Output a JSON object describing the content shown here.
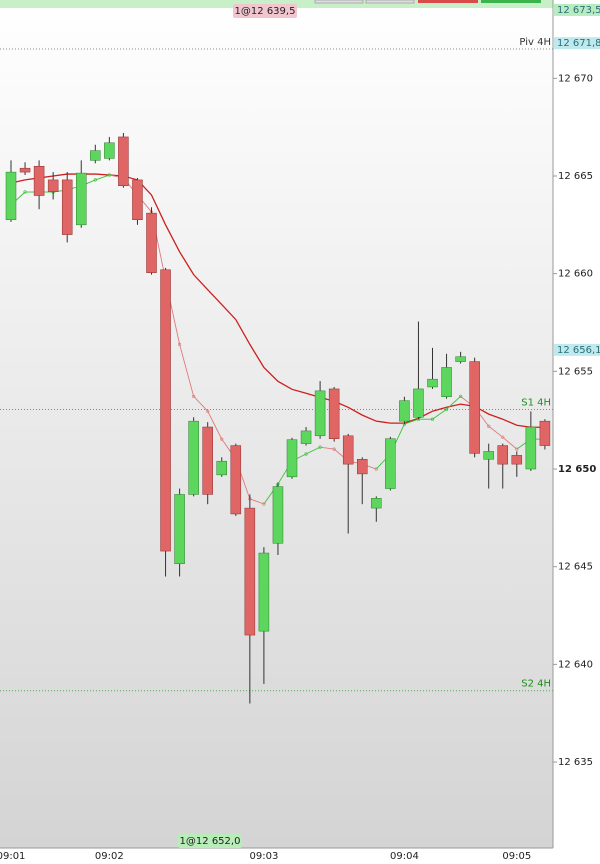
{
  "chart_data": {
    "type": "candlestick",
    "categories": [
      "09:01",
      null,
      null,
      null,
      null,
      null,
      null,
      "09:02",
      null,
      null,
      null,
      null,
      null,
      null,
      null,
      null,
      null,
      null,
      "09:03",
      null,
      null,
      null,
      null,
      null,
      null,
      null,
      null,
      null,
      "09:04",
      null,
      null,
      null,
      null,
      null,
      null,
      null,
      "09:05",
      null,
      null
    ],
    "open": [
      12662.76,
      12665.4,
      12665.5,
      12664.8,
      12664.8,
      12662.5,
      12665.8,
      12665.9,
      12667.0,
      12664.8,
      12663.1,
      12660.2,
      12645.15,
      12648.7,
      12652.15,
      12649.7,
      12651.2,
      12648.0,
      12641.7,
      12646.2,
      12649.6,
      12651.3,
      12651.7,
      12654.1,
      12651.7,
      12650.5,
      12648.0,
      12649.0,
      12652.45,
      12652.65,
      12654.2,
      12653.7,
      12655.5,
      12655.5,
      12650.5,
      12651.2,
      12650.7,
      12650.0,
      12652.45
    ],
    "high": [
      12665.8,
      12665.7,
      12665.8,
      12665.2,
      12665.2,
      12665.8,
      12666.6,
      12667.0,
      12667.2,
      12664.9,
      12663.4,
      12660.3,
      12649.0,
      12652.65,
      12652.4,
      12650.6,
      12651.3,
      12648.7,
      12646.0,
      12649.3,
      12651.6,
      12652.15,
      12654.5,
      12654.2,
      12651.8,
      12650.6,
      12648.6,
      12651.65,
      12653.7,
      12657.55,
      12656.2,
      12655.9,
      12656.0,
      12655.7,
      12651.3,
      12651.3,
      12650.9,
      12652.95,
      12652.55
    ],
    "low": [
      12662.65,
      12665.05,
      12663.3,
      12663.8,
      12661.6,
      12662.35,
      12665.65,
      12665.8,
      12664.4,
      12662.5,
      12659.95,
      12644.5,
      12644.5,
      12648.6,
      12648.2,
      12649.6,
      12647.6,
      12638.0,
      12639.0,
      12645.6,
      12649.5,
      12651.2,
      12651.55,
      12651.4,
      12646.7,
      12648.2,
      12647.3,
      12648.9,
      12652.3,
      12652.55,
      12654.1,
      12653.6,
      12655.4,
      12650.6,
      12649.0,
      12649.0,
      12649.6,
      12649.9,
      12651.0
    ],
    "close": [
      12665.2,
      12665.2,
      12664.0,
      12664.2,
      12662.0,
      12665.15,
      12666.3,
      12666.7,
      12664.5,
      12662.76,
      12660.05,
      12645.8,
      12648.7,
      12652.45,
      12648.7,
      12650.4,
      12647.7,
      12641.5,
      12645.7,
      12649.1,
      12651.5,
      12651.95,
      12654.0,
      12651.55,
      12650.25,
      12649.75,
      12648.5,
      12651.55,
      12653.5,
      12654.1,
      12654.6,
      12655.2,
      12655.75,
      12650.8,
      12650.9,
      12650.25,
      12650.25,
      12652.15,
      12651.2
    ],
    "up_color": "#5cd65c",
    "down_color": "#e06666",
    "series": [
      {
        "name": "MA slow",
        "kind": "line",
        "color": "#cc1f1f",
        "values": [
          12664.64,
          12664.8,
          12664.9,
          12665.0,
          12665.1,
          12665.1,
          12665.1,
          12665.05,
          12665.0,
          12664.8,
          12664.03,
          12662.5,
          12661.12,
          12659.95,
          12659.18,
          12658.42,
          12657.65,
          12656.38,
          12655.2,
          12654.49,
          12654.08,
          12653.88,
          12653.67,
          12653.47,
          12653.16,
          12652.76,
          12652.45,
          12652.35,
          12652.35,
          12652.6,
          12652.96,
          12653.16,
          12653.32,
          12653.21,
          12652.81,
          12652.55,
          12652.24,
          12652.14,
          12652.14
        ]
      },
      {
        "name": "MA fast",
        "kind": "direction-line",
        "up_color": "#39c239",
        "down_color": "#e07a7a",
        "values": [
          12663.52,
          12664.18,
          12664.18,
          12664.18,
          12664.29,
          12664.49,
          12664.8,
          12665.05,
          12664.9,
          12664.03,
          12663.16,
          12659.69,
          12656.38,
          12653.72,
          12652.96,
          12651.53,
          12650.51,
          12648.47,
          12648.21,
          12649.23,
          12650.41,
          12650.77,
          12651.12,
          12651.02,
          12650.41,
          12650.26,
          12650.0,
          12650.77,
          12652.3,
          12652.55,
          12652.55,
          12653.06,
          12653.72,
          12653.16,
          12652.19,
          12651.63,
          12651.02,
          12651.53,
          12651.53
        ]
      }
    ],
    "ylim": [
      12630.6,
      12673.6
    ],
    "yticks": [
      {
        "value": 12670,
        "label": "12 670"
      },
      {
        "value": 12665,
        "label": "12 665"
      },
      {
        "value": 12660,
        "label": "12 660"
      },
      {
        "value": 12655,
        "label": "12 655"
      },
      {
        "value": 12650,
        "label": "12 650",
        "bold": true
      },
      {
        "value": 12645,
        "label": "12 645"
      },
      {
        "value": 12640,
        "label": "12 640"
      },
      {
        "value": 12635,
        "label": "12 635"
      }
    ],
    "levels": [
      {
        "name": "Piv 4H",
        "value": 12671.5,
        "color": "#333333",
        "line_color": "#888888"
      },
      {
        "name": "S1 4H",
        "value": 12653.05,
        "color": "#1a8f1a",
        "line_color": "#4caf50"
      },
      {
        "name": "S2 4H",
        "value": 12638.65,
        "color": "#1a8f1a",
        "line_color": "#4caf50"
      }
    ],
    "price_flags": [
      {
        "value": 12673.5,
        "label": "12 673,5",
        "color": "#b8ecc0"
      },
      {
        "value": 12671.8,
        "label": "12 671,8",
        "color": "#bfe9ec"
      },
      {
        "value": 12656.1,
        "label": "12 656,1",
        "color": "#bfe9ec"
      }
    ],
    "orders": [
      {
        "label": "1@12 639,5",
        "color": "#f2c6cf"
      },
      {
        "label": "1@12 652,0",
        "color": "#b8ecb8"
      }
    ]
  }
}
